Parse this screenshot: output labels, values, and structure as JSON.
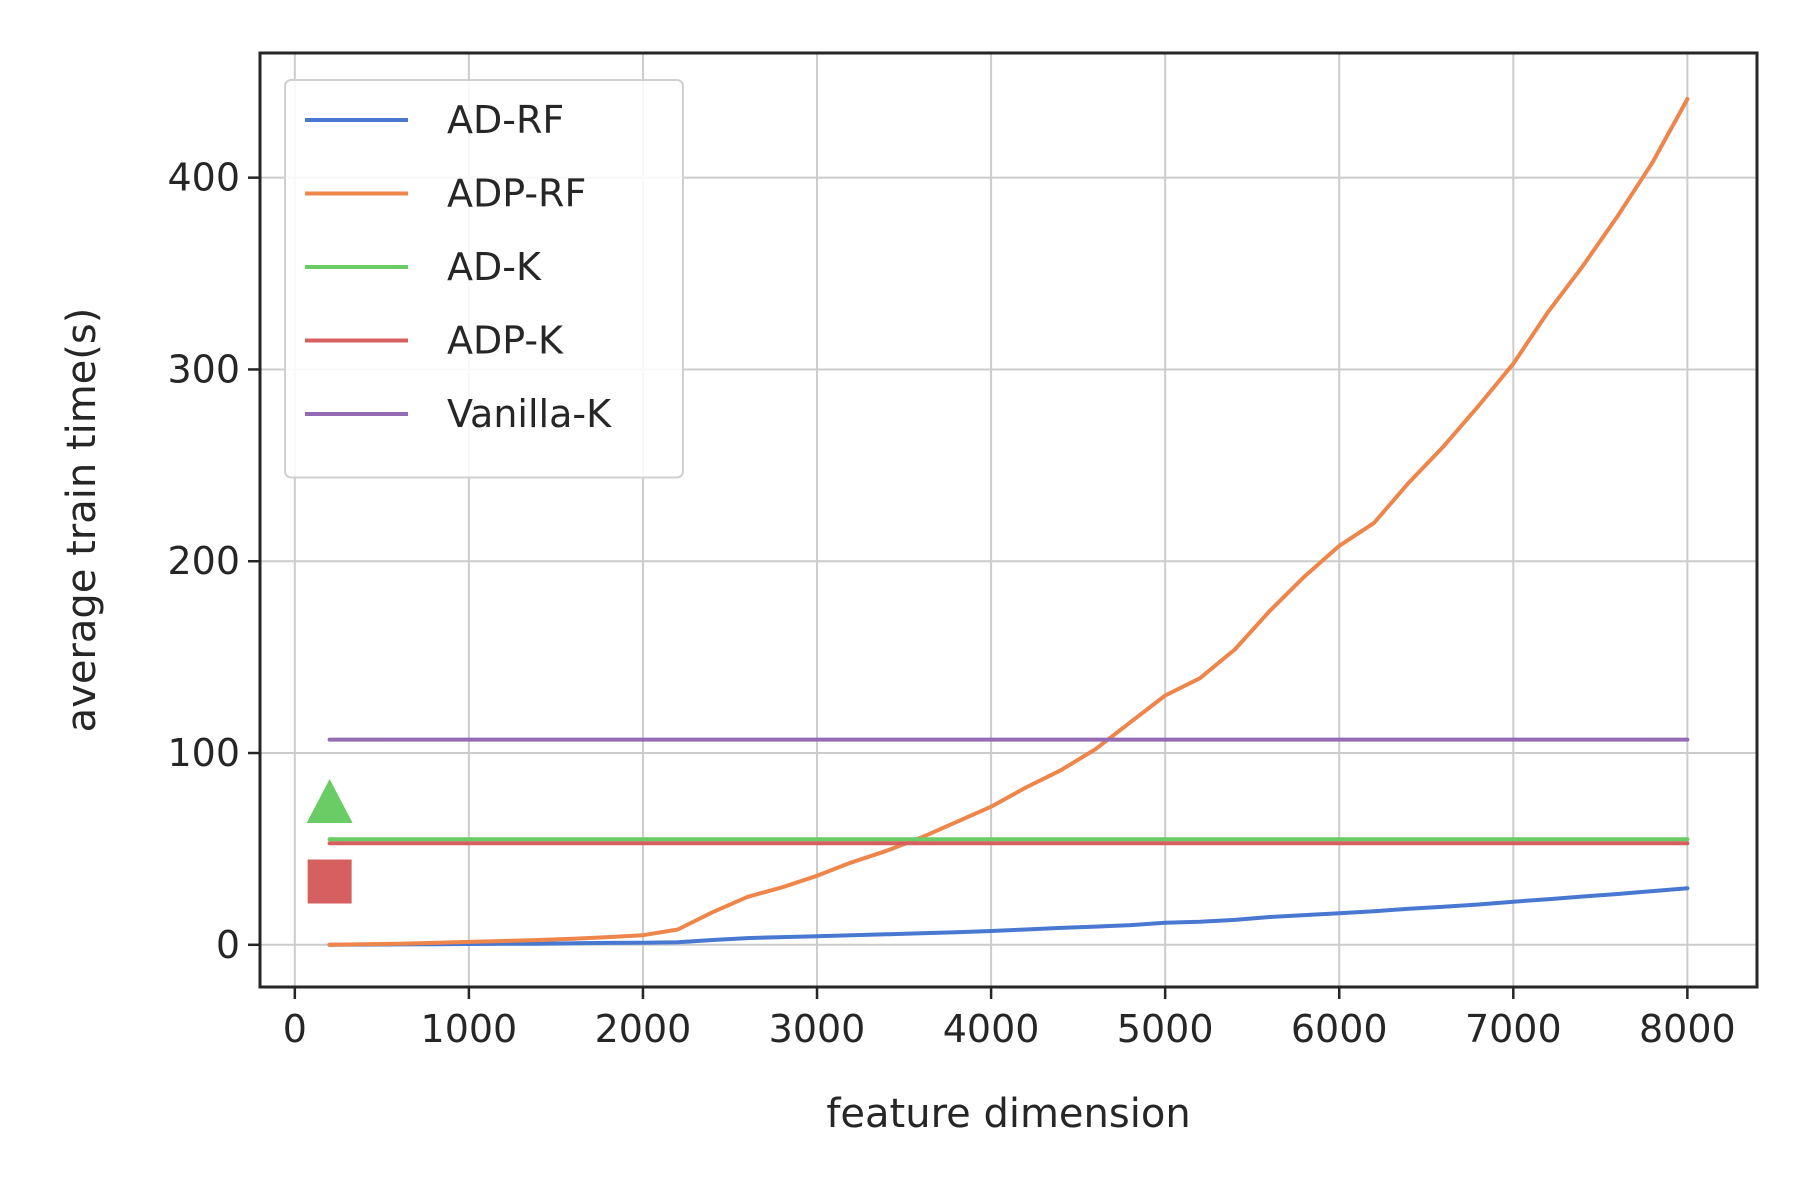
{
  "chart_data": {
    "type": "line",
    "title": "",
    "xlabel": "feature dimension",
    "ylabel": "average train time(s)",
    "xlim": [
      -200,
      8400
    ],
    "ylim": [
      -22,
      465
    ],
    "xticks": [
      0,
      1000,
      2000,
      3000,
      4000,
      5000,
      6000,
      7000,
      8000
    ],
    "yticks": [
      0,
      100,
      200,
      300,
      400
    ],
    "grid": true,
    "legend_position": "top-left",
    "series": [
      {
        "name": "AD-RF",
        "color": "#4878d0",
        "x": [
          200,
          400,
          600,
          800,
          1000,
          1200,
          1400,
          1600,
          1800,
          2000,
          2200,
          2400,
          2600,
          2800,
          3000,
          3200,
          3400,
          3600,
          3800,
          4000,
          4200,
          4400,
          4600,
          4800,
          5000,
          5200,
          5400,
          5600,
          5800,
          6000,
          6200,
          6400,
          6600,
          6800,
          7000,
          7200,
          7400,
          7600,
          7800,
          8000
        ],
        "y": [
          0,
          0.1,
          0.2,
          0.3,
          0.4,
          0.5,
          0.6,
          0.8,
          1.0,
          1.1,
          1.3,
          2.5,
          3.5,
          4.0,
          4.5,
          5.0,
          5.5,
          6.0,
          6.5,
          7.2,
          8.0,
          8.8,
          9.5,
          10.3,
          11.5,
          12.0,
          13.0,
          14.5,
          15.5,
          16.5,
          17.5,
          18.8,
          19.8,
          21.0,
          22.5,
          23.8,
          25.2,
          26.5,
          28.0,
          29.5
        ]
      },
      {
        "name": "ADP-RF",
        "color": "#ee854a",
        "x": [
          200,
          400,
          600,
          800,
          1000,
          1200,
          1400,
          1600,
          1800,
          2000,
          2200,
          2400,
          2600,
          2800,
          3000,
          3200,
          3400,
          3600,
          3800,
          4000,
          4200,
          4400,
          4600,
          4800,
          5000,
          5200,
          5400,
          5600,
          5800,
          6000,
          6200,
          6400,
          6600,
          6800,
          7000,
          7200,
          7400,
          7600,
          7800,
          8000
        ],
        "y": [
          0,
          0.3,
          0.6,
          1.0,
          1.5,
          2.0,
          2.5,
          3.2,
          4.0,
          5.0,
          8.0,
          17.0,
          25.0,
          30.0,
          36.0,
          43.0,
          49.0,
          56.0,
          64.0,
          72.0,
          82.0,
          91.0,
          102.0,
          116.0,
          130.0,
          139.0,
          154.0,
          174.0,
          192.0,
          208.0,
          220.0,
          241.0,
          260.0,
          281.0,
          303.0,
          330.0,
          354.0,
          380.0,
          408.0,
          441.0
        ]
      },
      {
        "name": "AD-K",
        "color": "#6acc64",
        "x": [
          200,
          8000
        ],
        "y": [
          55,
          55
        ]
      },
      {
        "name": "ADP-K",
        "color": "#d65f5f",
        "x": [
          200,
          8000
        ],
        "y": [
          53,
          53
        ]
      },
      {
        "name": "Vanilla-K",
        "color": "#956cb4",
        "x": [
          200,
          8000
        ],
        "y": [
          107,
          107
        ]
      }
    ],
    "markers": [
      {
        "series": "AD-K",
        "shape": "triangle",
        "color": "#6acc64",
        "x": 200,
        "y": 75
      },
      {
        "series": "ADP-K",
        "shape": "square",
        "color": "#d65f5f",
        "x": 200,
        "y": 33
      }
    ]
  }
}
